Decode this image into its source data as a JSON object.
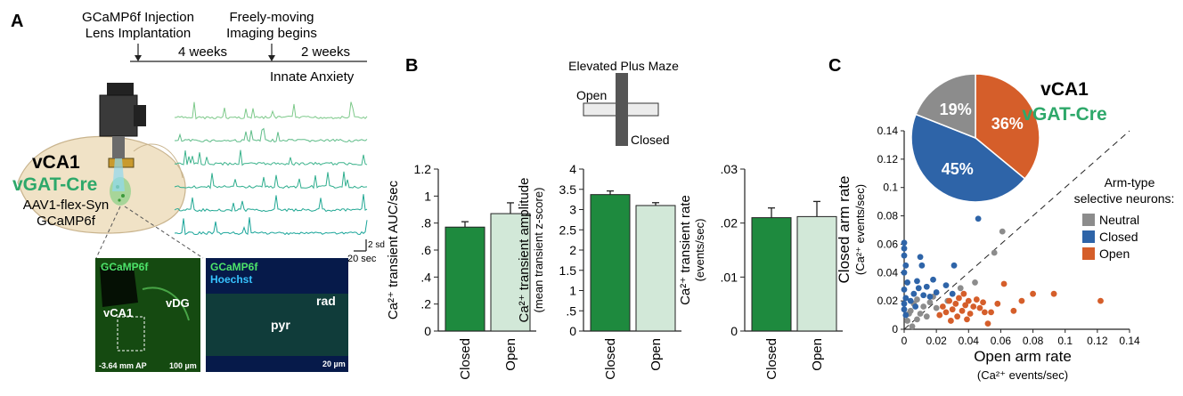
{
  "panels": {
    "A": "A",
    "B": "B",
    "C": "C"
  },
  "timeline": {
    "event1_line1": "GCaMP6f Injection",
    "event1_line2": "Lens Implantation",
    "event2_line1": "Freely-moving",
    "event2_line2": "Imaging begins",
    "interval1": "4 weeks",
    "interval2": "2 weeks",
    "phase": "Innate Anxiety"
  },
  "schematic": {
    "region": "vCA1",
    "mouse_line": "vGAT-Cre",
    "virus": "AAV1-flex-Syn",
    "indicator": "GCaMP6f",
    "scale_y": "2 sd",
    "scale_x": "20 sec",
    "traces_count_shown": 6
  },
  "histology": {
    "left_label": "GCaMP6f",
    "left_region1": "vCA1",
    "left_region2": "vDG",
    "left_coord": "-3.64 mm AP",
    "left_scale": "100 µm",
    "right_label1": "GCaMP6f",
    "right_label2": "Hoechst",
    "right_region1": "pyr",
    "right_region2": "rad",
    "right_scale": "20 µm"
  },
  "maze": {
    "title": "Elevated Plus Maze",
    "open_label": "Open",
    "closed_label": "Closed"
  },
  "colors": {
    "closed_bar": "#1e8a3e",
    "open_bar": "#d2e8d8",
    "trace": "#3cb38c",
    "neutral": "#8c8c8c",
    "closed": "#2e64a8",
    "open": "#d55e2a",
    "accent_text": "#2ea86a"
  },
  "chart_data": [
    {
      "type": "bar",
      "categories": [
        "Closed",
        "Open"
      ],
      "values": [
        0.77,
        0.87
      ],
      "errors": [
        0.04,
        0.08
      ],
      "ylabel": "Ca²⁺ transient AUC/sec",
      "ylim": [
        0,
        1.2
      ],
      "yticks": [
        "0",
        ".2",
        ".4",
        ".6",
        ".8",
        "1",
        "1.2"
      ]
    },
    {
      "type": "bar",
      "categories": [
        "Closed",
        "Open"
      ],
      "values": [
        3.37,
        3.1
      ],
      "errors": [
        0.09,
        0.07
      ],
      "ylabel": "Ca²⁺ transient amplitude",
      "ylabel2": "(mean transient z-score)",
      "ylim": [
        0,
        4
      ],
      "yticks": [
        "0",
        ".5",
        "1",
        "1.5",
        "2",
        "2.5",
        "3",
        "3.5",
        "4"
      ]
    },
    {
      "type": "bar",
      "categories": [
        "Closed",
        "Open"
      ],
      "values": [
        0.021,
        0.0212
      ],
      "errors": [
        0.0018,
        0.0028
      ],
      "ylabel": "Ca²⁺ transient rate",
      "ylabel2": "(events/sec)",
      "ylim": [
        0,
        0.03
      ],
      "yticks": [
        "0",
        ".01",
        ".02",
        ".03"
      ]
    },
    {
      "type": "scatter",
      "xlabel": "Open arm rate",
      "xlabel2": "(Ca²⁺ events/sec)",
      "ylabel": "Closed arm rate",
      "ylabel2": "(Ca²⁺ events/sec)",
      "xlim": [
        0,
        0.14
      ],
      "ylim": [
        0,
        0.14
      ],
      "xticks": [
        "0",
        "0.02",
        "0.04",
        "0.06",
        "0.08",
        "0.1",
        "0.12",
        "0.14"
      ],
      "yticks": [
        "0",
        "0.02",
        "0.04",
        "0.06",
        "0.08",
        "0.1",
        "0.12",
        "0.14"
      ],
      "legend_title1": "Arm-type",
      "legend_title2": "selective neurons:",
      "series": [
        {
          "name": "Neutral",
          "color": "#8c8c8c",
          "points": [
            [
              0.002,
              0.006
            ],
            [
              0.004,
              0.013
            ],
            [
              0.006,
              0.018
            ],
            [
              0.008,
              0.007
            ],
            [
              0.01,
              0.011
            ],
            [
              0.012,
              0.016
            ],
            [
              0.014,
              0.009
            ],
            [
              0.016,
              0.019
            ],
            [
              0.005,
              0.002
            ],
            [
              0.02,
              0.015
            ],
            [
              0.027,
              0.02
            ],
            [
              0.035,
              0.029
            ],
            [
              0.044,
              0.033
            ],
            [
              0.056,
              0.054
            ],
            [
              0.061,
              0.069
            ],
            [
              0.008,
              0.021
            ],
            [
              0.018,
              0.023
            ],
            [
              0.003,
              0.011
            ]
          ]
        },
        {
          "name": "Closed",
          "color": "#2e64a8",
          "points": [
            [
              0.0,
              0.061
            ],
            [
              0.0,
              0.057
            ],
            [
              0.0,
              0.052
            ],
            [
              0.001,
              0.045
            ],
            [
              0.0,
              0.04
            ],
            [
              0.002,
              0.033
            ],
            [
              0.0,
              0.028
            ],
            [
              0.001,
              0.022
            ],
            [
              0.0,
              0.018
            ],
            [
              0.0,
              0.014
            ],
            [
              0.001,
              0.01
            ],
            [
              0.004,
              0.02
            ],
            [
              0.006,
              0.025
            ],
            [
              0.008,
              0.034
            ],
            [
              0.01,
              0.051
            ],
            [
              0.011,
              0.045
            ],
            [
              0.012,
              0.024
            ],
            [
              0.014,
              0.03
            ],
            [
              0.016,
              0.023
            ],
            [
              0.018,
              0.035
            ],
            [
              0.02,
              0.026
            ],
            [
              0.026,
              0.031
            ],
            [
              0.03,
              0.025
            ],
            [
              0.031,
              0.045
            ],
            [
              0.046,
              0.078
            ],
            [
              0.007,
              0.016
            ],
            [
              0.009,
              0.029
            ]
          ]
        },
        {
          "name": "Open",
          "color": "#d55e2a",
          "points": [
            [
              0.022,
              0.01
            ],
            [
              0.024,
              0.016
            ],
            [
              0.026,
              0.012
            ],
            [
              0.028,
              0.02
            ],
            [
              0.03,
              0.014
            ],
            [
              0.032,
              0.018
            ],
            [
              0.033,
              0.009
            ],
            [
              0.034,
              0.022
            ],
            [
              0.036,
              0.013
            ],
            [
              0.037,
              0.025
            ],
            [
              0.038,
              0.017
            ],
            [
              0.04,
              0.02
            ],
            [
              0.041,
              0.011
            ],
            [
              0.043,
              0.016
            ],
            [
              0.045,
              0.021
            ],
            [
              0.047,
              0.015
            ],
            [
              0.049,
              0.019
            ],
            [
              0.05,
              0.012
            ],
            [
              0.052,
              0.004
            ],
            [
              0.054,
              0.012
            ],
            [
              0.058,
              0.018
            ],
            [
              0.062,
              0.032
            ],
            [
              0.068,
              0.013
            ],
            [
              0.073,
              0.02
            ],
            [
              0.08,
              0.025
            ],
            [
              0.093,
              0.025
            ],
            [
              0.122,
              0.02
            ],
            [
              0.029,
              0.006
            ],
            [
              0.039,
              0.007
            ]
          ]
        }
      ]
    },
    {
      "type": "pie",
      "title": "vCA1",
      "subtitle": "vGAT-Cre",
      "slices": [
        {
          "name": "Open",
          "value": 36,
          "label": "36%",
          "color": "#d55e2a"
        },
        {
          "name": "Closed",
          "value": 45,
          "label": "45%",
          "color": "#2e64a8"
        },
        {
          "name": "Neutral",
          "value": 19,
          "label": "19%",
          "color": "#8c8c8c"
        }
      ]
    }
  ]
}
